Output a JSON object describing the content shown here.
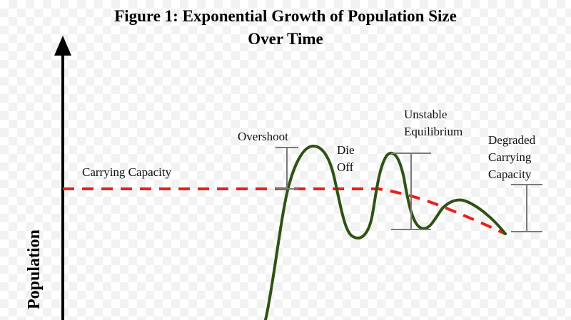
{
  "title": {
    "line1": "Figure 1: Exponential Growth of Population Size",
    "line2": "Over Time"
  },
  "axes": {
    "ylabel": "Population"
  },
  "labels": {
    "carrying_capacity": "Carrying Capacity",
    "overshoot": "Overshoot",
    "die_off_line1": "Die",
    "die_off_line2": "Off",
    "unstable_line1": "Unstable",
    "unstable_line2": "Equilibrium",
    "degraded_line1": "Degraded",
    "degraded_line2": "Carrying",
    "degraded_line3": "Capacity"
  },
  "colors": {
    "population_curve": "#2f5214",
    "carrying_capacity_line": "#e8201c",
    "range_brackets": "#7a7a7a",
    "axis": "#000000"
  }
}
